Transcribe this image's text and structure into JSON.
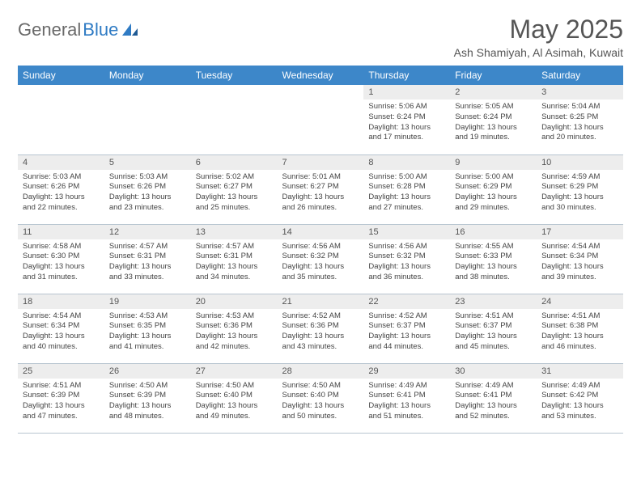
{
  "brand": {
    "part1": "General",
    "part2": "Blue"
  },
  "title": "May 2025",
  "location": "Ash Shamiyah, Al Asimah, Kuwait",
  "colors": {
    "header_bg": "#3d87c9",
    "header_text": "#ffffff",
    "daynum_bg": "#ededed",
    "border": "#b8c5d0",
    "logo_gray": "#6a6a6a",
    "logo_blue": "#2f7bc4"
  },
  "weekdays": [
    "Sunday",
    "Monday",
    "Tuesday",
    "Wednesday",
    "Thursday",
    "Friday",
    "Saturday"
  ],
  "weeks": [
    [
      {
        "n": "",
        "sr": "",
        "ss": "",
        "dl": ""
      },
      {
        "n": "",
        "sr": "",
        "ss": "",
        "dl": ""
      },
      {
        "n": "",
        "sr": "",
        "ss": "",
        "dl": ""
      },
      {
        "n": "",
        "sr": "",
        "ss": "",
        "dl": ""
      },
      {
        "n": "1",
        "sr": "Sunrise: 5:06 AM",
        "ss": "Sunset: 6:24 PM",
        "dl": "Daylight: 13 hours and 17 minutes."
      },
      {
        "n": "2",
        "sr": "Sunrise: 5:05 AM",
        "ss": "Sunset: 6:24 PM",
        "dl": "Daylight: 13 hours and 19 minutes."
      },
      {
        "n": "3",
        "sr": "Sunrise: 5:04 AM",
        "ss": "Sunset: 6:25 PM",
        "dl": "Daylight: 13 hours and 20 minutes."
      }
    ],
    [
      {
        "n": "4",
        "sr": "Sunrise: 5:03 AM",
        "ss": "Sunset: 6:26 PM",
        "dl": "Daylight: 13 hours and 22 minutes."
      },
      {
        "n": "5",
        "sr": "Sunrise: 5:03 AM",
        "ss": "Sunset: 6:26 PM",
        "dl": "Daylight: 13 hours and 23 minutes."
      },
      {
        "n": "6",
        "sr": "Sunrise: 5:02 AM",
        "ss": "Sunset: 6:27 PM",
        "dl": "Daylight: 13 hours and 25 minutes."
      },
      {
        "n": "7",
        "sr": "Sunrise: 5:01 AM",
        "ss": "Sunset: 6:27 PM",
        "dl": "Daylight: 13 hours and 26 minutes."
      },
      {
        "n": "8",
        "sr": "Sunrise: 5:00 AM",
        "ss": "Sunset: 6:28 PM",
        "dl": "Daylight: 13 hours and 27 minutes."
      },
      {
        "n": "9",
        "sr": "Sunrise: 5:00 AM",
        "ss": "Sunset: 6:29 PM",
        "dl": "Daylight: 13 hours and 29 minutes."
      },
      {
        "n": "10",
        "sr": "Sunrise: 4:59 AM",
        "ss": "Sunset: 6:29 PM",
        "dl": "Daylight: 13 hours and 30 minutes."
      }
    ],
    [
      {
        "n": "11",
        "sr": "Sunrise: 4:58 AM",
        "ss": "Sunset: 6:30 PM",
        "dl": "Daylight: 13 hours and 31 minutes."
      },
      {
        "n": "12",
        "sr": "Sunrise: 4:57 AM",
        "ss": "Sunset: 6:31 PM",
        "dl": "Daylight: 13 hours and 33 minutes."
      },
      {
        "n": "13",
        "sr": "Sunrise: 4:57 AM",
        "ss": "Sunset: 6:31 PM",
        "dl": "Daylight: 13 hours and 34 minutes."
      },
      {
        "n": "14",
        "sr": "Sunrise: 4:56 AM",
        "ss": "Sunset: 6:32 PM",
        "dl": "Daylight: 13 hours and 35 minutes."
      },
      {
        "n": "15",
        "sr": "Sunrise: 4:56 AM",
        "ss": "Sunset: 6:32 PM",
        "dl": "Daylight: 13 hours and 36 minutes."
      },
      {
        "n": "16",
        "sr": "Sunrise: 4:55 AM",
        "ss": "Sunset: 6:33 PM",
        "dl": "Daylight: 13 hours and 38 minutes."
      },
      {
        "n": "17",
        "sr": "Sunrise: 4:54 AM",
        "ss": "Sunset: 6:34 PM",
        "dl": "Daylight: 13 hours and 39 minutes."
      }
    ],
    [
      {
        "n": "18",
        "sr": "Sunrise: 4:54 AM",
        "ss": "Sunset: 6:34 PM",
        "dl": "Daylight: 13 hours and 40 minutes."
      },
      {
        "n": "19",
        "sr": "Sunrise: 4:53 AM",
        "ss": "Sunset: 6:35 PM",
        "dl": "Daylight: 13 hours and 41 minutes."
      },
      {
        "n": "20",
        "sr": "Sunrise: 4:53 AM",
        "ss": "Sunset: 6:36 PM",
        "dl": "Daylight: 13 hours and 42 minutes."
      },
      {
        "n": "21",
        "sr": "Sunrise: 4:52 AM",
        "ss": "Sunset: 6:36 PM",
        "dl": "Daylight: 13 hours and 43 minutes."
      },
      {
        "n": "22",
        "sr": "Sunrise: 4:52 AM",
        "ss": "Sunset: 6:37 PM",
        "dl": "Daylight: 13 hours and 44 minutes."
      },
      {
        "n": "23",
        "sr": "Sunrise: 4:51 AM",
        "ss": "Sunset: 6:37 PM",
        "dl": "Daylight: 13 hours and 45 minutes."
      },
      {
        "n": "24",
        "sr": "Sunrise: 4:51 AM",
        "ss": "Sunset: 6:38 PM",
        "dl": "Daylight: 13 hours and 46 minutes."
      }
    ],
    [
      {
        "n": "25",
        "sr": "Sunrise: 4:51 AM",
        "ss": "Sunset: 6:39 PM",
        "dl": "Daylight: 13 hours and 47 minutes."
      },
      {
        "n": "26",
        "sr": "Sunrise: 4:50 AM",
        "ss": "Sunset: 6:39 PM",
        "dl": "Daylight: 13 hours and 48 minutes."
      },
      {
        "n": "27",
        "sr": "Sunrise: 4:50 AM",
        "ss": "Sunset: 6:40 PM",
        "dl": "Daylight: 13 hours and 49 minutes."
      },
      {
        "n": "28",
        "sr": "Sunrise: 4:50 AM",
        "ss": "Sunset: 6:40 PM",
        "dl": "Daylight: 13 hours and 50 minutes."
      },
      {
        "n": "29",
        "sr": "Sunrise: 4:49 AM",
        "ss": "Sunset: 6:41 PM",
        "dl": "Daylight: 13 hours and 51 minutes."
      },
      {
        "n": "30",
        "sr": "Sunrise: 4:49 AM",
        "ss": "Sunset: 6:41 PM",
        "dl": "Daylight: 13 hours and 52 minutes."
      },
      {
        "n": "31",
        "sr": "Sunrise: 4:49 AM",
        "ss": "Sunset: 6:42 PM",
        "dl": "Daylight: 13 hours and 53 minutes."
      }
    ]
  ]
}
